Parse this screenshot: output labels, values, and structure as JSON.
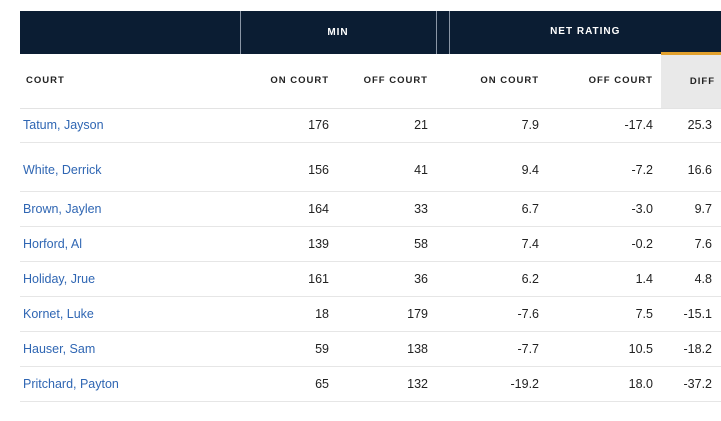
{
  "group_headers": {
    "min": "MIN",
    "net_rating": "NET RATING"
  },
  "column_headers": {
    "court": "COURT",
    "min_on": "ON COURT",
    "min_off": "OFF COURT",
    "net_on": "ON COURT",
    "net_off": "OFF COURT",
    "diff": "DIFF"
  },
  "colors": {
    "header_bg": "#0b1d33",
    "accent": "#e2a12e",
    "link": "#2f66b3"
  },
  "rows": [
    {
      "name": "Tatum, Jayson",
      "min_on": "176",
      "min_off": "21",
      "net_on": "7.9",
      "net_off": "-17.4",
      "diff": "25.3"
    },
    {
      "name": "White, Derrick",
      "min_on": "156",
      "min_off": "41",
      "net_on": "9.4",
      "net_off": "-7.2",
      "diff": "16.6"
    },
    {
      "name": "Brown, Jaylen",
      "min_on": "164",
      "min_off": "33",
      "net_on": "6.7",
      "net_off": "-3.0",
      "diff": "9.7"
    },
    {
      "name": "Horford, Al",
      "min_on": "139",
      "min_off": "58",
      "net_on": "7.4",
      "net_off": "-0.2",
      "diff": "7.6"
    },
    {
      "name": "Holiday, Jrue",
      "min_on": "161",
      "min_off": "36",
      "net_on": "6.2",
      "net_off": "1.4",
      "diff": "4.8"
    },
    {
      "name": "Kornet, Luke",
      "min_on": "18",
      "min_off": "179",
      "net_on": "-7.6",
      "net_off": "7.5",
      "diff": "-15.1"
    },
    {
      "name": "Hauser, Sam",
      "min_on": "59",
      "min_off": "138",
      "net_on": "-7.7",
      "net_off": "10.5",
      "diff": "-18.2"
    },
    {
      "name": "Pritchard, Payton",
      "min_on": "65",
      "min_off": "132",
      "net_on": "-19.2",
      "net_off": "18.0",
      "diff": "-37.2"
    }
  ]
}
